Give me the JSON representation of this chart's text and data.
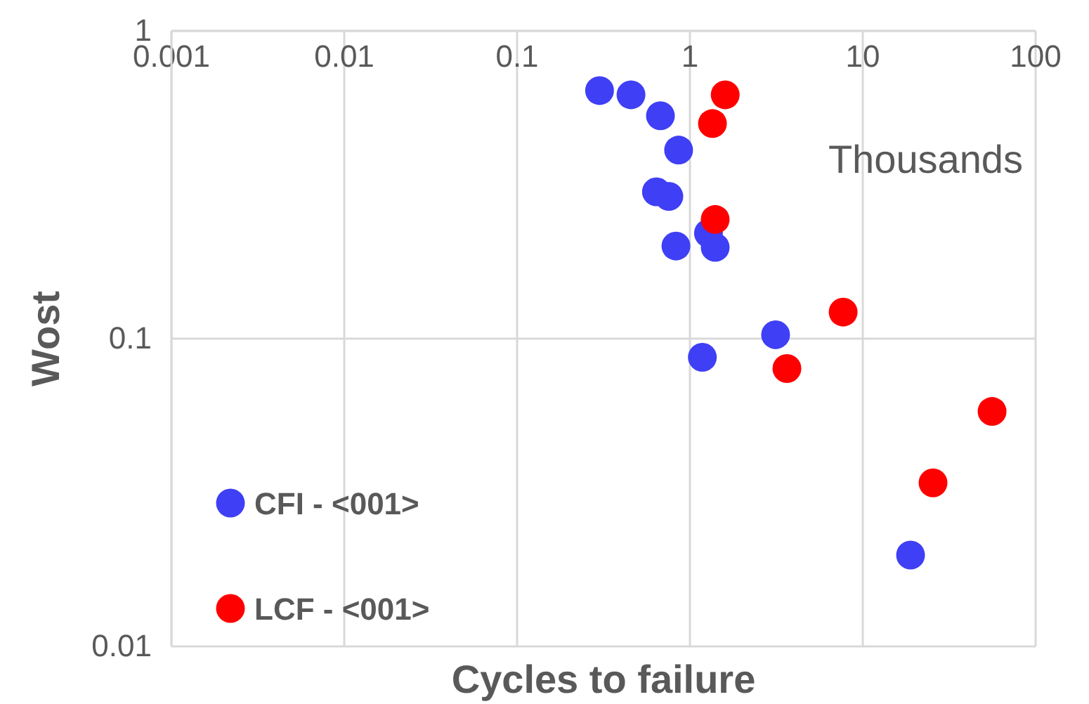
{
  "chart_data": {
    "type": "scatter",
    "xlabel": "Cycles to failure",
    "ylabel": "Wost",
    "log": "xy",
    "grid": true,
    "legend": "bottom left",
    "marker": "circle",
    "xlim": [
      0.001,
      100
    ],
    "xticks": [
      0.001,
      0.01,
      0.1,
      1,
      10,
      100
    ],
    "ylim": [
      0.01,
      1
    ],
    "yticks": [
      0.01,
      0.1,
      1
    ],
    "annotations": [
      "Thousands"
    ],
    "series": [
      {
        "name": "CFI - <001>",
        "color": "#3f3ff5",
        "x": [
          0.3,
          0.456,
          0.675,
          0.86,
          0.64,
          0.755,
          0.83,
          1.28,
          1.4,
          1.18,
          3.13,
          18.9
        ],
        "values": [
          0.64,
          0.62,
          0.53,
          0.41,
          0.3,
          0.29,
          0.2,
          0.22,
          0.198,
          0.087,
          0.103,
          0.0198
        ]
      },
      {
        "name": "LCF - <001>",
        "color": "#ff0000",
        "x": [
          1.6,
          1.35,
          1.4,
          7.7,
          3.64,
          56,
          25.5
        ],
        "values": [
          0.62,
          0.5,
          0.244,
          0.122,
          0.08,
          0.058,
          0.034
        ]
      }
    ]
  }
}
